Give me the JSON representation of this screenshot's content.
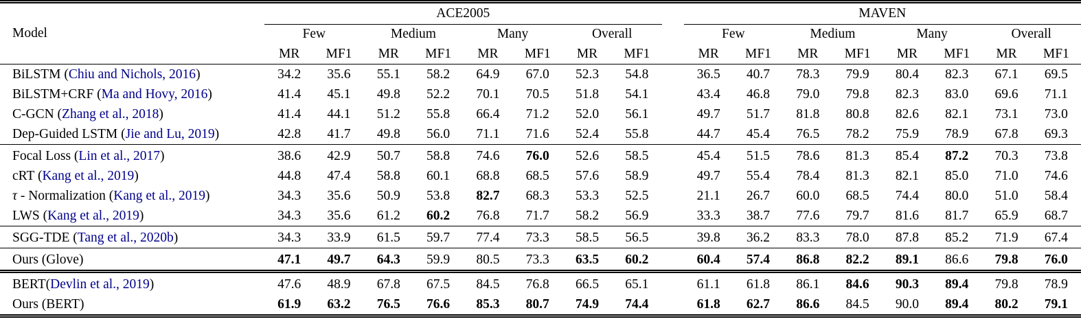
{
  "table": {
    "model_header": "Model",
    "datasets": [
      "ACE2005",
      "MAVEN"
    ],
    "subgroups": [
      "Few",
      "Medium",
      "Many",
      "Overall"
    ],
    "metrics": [
      "MR",
      "MF1"
    ],
    "citation_color": "#00008B",
    "groups": [
      {
        "double_rule": false,
        "rows": [
          {
            "name": "BiLSTM ",
            "cite": "Chiu and Nichols, 2016",
            "ace": [
              "34.2",
              "35.6",
              "55.1",
              "58.2",
              "64.9",
              "67.0",
              "52.3",
              "54.8"
            ],
            "ace_bold": [],
            "maven": [
              "36.5",
              "40.7",
              "78.3",
              "79.9",
              "80.4",
              "82.3",
              "67.1",
              "69.5"
            ],
            "maven_bold": []
          },
          {
            "name": "BiLSTM+CRF ",
            "cite": "Ma and Hovy, 2016",
            "ace": [
              "41.4",
              "45.1",
              "49.8",
              "52.2",
              "70.1",
              "70.5",
              "51.8",
              "54.1"
            ],
            "ace_bold": [],
            "maven": [
              "43.4",
              "46.8",
              "79.0",
              "79.8",
              "82.3",
              "83.0",
              "69.6",
              "71.1"
            ],
            "maven_bold": []
          },
          {
            "name": "C-GCN ",
            "cite": "Zhang et al., 2018",
            "ace": [
              "41.4",
              "44.1",
              "51.2",
              "55.8",
              "66.4",
              "71.2",
              "52.0",
              "56.1"
            ],
            "ace_bold": [],
            "maven": [
              "49.7",
              "51.7",
              "81.8",
              "80.8",
              "82.6",
              "82.1",
              "73.1",
              "73.0"
            ],
            "maven_bold": []
          },
          {
            "name": "Dep-Guided LSTM ",
            "cite": "Jie and Lu, 2019",
            "ace": [
              "42.8",
              "41.7",
              "49.8",
              "56.0",
              "71.1",
              "71.6",
              "52.4",
              "55.8"
            ],
            "ace_bold": [],
            "maven": [
              "44.7",
              "45.4",
              "76.5",
              "78.2",
              "75.9",
              "78.9",
              "67.8",
              "69.3"
            ],
            "maven_bold": []
          }
        ]
      },
      {
        "double_rule": false,
        "rows": [
          {
            "name": "Focal Loss ",
            "cite": "Lin et al., 2017",
            "ace": [
              "38.6",
              "42.9",
              "50.7",
              "58.8",
              "74.6",
              "76.0",
              "52.6",
              "58.5"
            ],
            "ace_bold": [
              5
            ],
            "maven": [
              "45.4",
              "51.5",
              "78.6",
              "81.3",
              "85.4",
              "87.2",
              "70.3",
              "73.8"
            ],
            "maven_bold": [
              5
            ]
          },
          {
            "name": "cRT ",
            "cite": "Kang et al., 2019",
            "ace": [
              "44.8",
              "47.4",
              "58.8",
              "60.1",
              "68.8",
              "68.5",
              "57.6",
              "58.9"
            ],
            "ace_bold": [],
            "maven": [
              "49.7",
              "55.4",
              "78.4",
              "81.3",
              "82.1",
              "85.0",
              "71.0",
              "74.6"
            ],
            "maven_bold": []
          },
          {
            "italic": "τ",
            "name": " - Normalization ",
            "cite": "Kang et al., 2019",
            "ace": [
              "34.3",
              "35.6",
              "50.9",
              "53.8",
              "82.7",
              "68.3",
              "53.3",
              "52.5"
            ],
            "ace_bold": [
              4
            ],
            "maven": [
              "21.1",
              "26.7",
              "60.0",
              "68.5",
              "74.4",
              "80.0",
              "51.0",
              "58.4"
            ],
            "maven_bold": []
          },
          {
            "name": "LWS ",
            "cite": "Kang et al., 2019",
            "ace": [
              "34.3",
              "35.6",
              "61.2",
              "60.2",
              "76.8",
              "71.7",
              "58.2",
              "56.9"
            ],
            "ace_bold": [
              3
            ],
            "maven": [
              "33.3",
              "38.7",
              "77.6",
              "79.7",
              "81.6",
              "81.7",
              "65.9",
              "68.7"
            ],
            "maven_bold": []
          }
        ]
      },
      {
        "double_rule": false,
        "rows": [
          {
            "name": "SGG-TDE ",
            "cite": "Tang et al., 2020b",
            "ace": [
              "34.3",
              "33.9",
              "61.5",
              "59.7",
              "77.4",
              "73.3",
              "58.5",
              "56.5"
            ],
            "ace_bold": [],
            "maven": [
              "39.8",
              "36.2",
              "83.3",
              "78.0",
              "87.8",
              "85.2",
              "71.9",
              "67.4"
            ],
            "maven_bold": []
          }
        ]
      },
      {
        "double_rule": false,
        "rows": [
          {
            "name": "Ours (Glove)",
            "cite": null,
            "ace": [
              "47.1",
              "49.7",
              "64.3",
              "59.9",
              "80.5",
              "73.3",
              "63.5",
              "60.2"
            ],
            "ace_bold": [
              0,
              1,
              2,
              6,
              7
            ],
            "maven": [
              "60.4",
              "57.4",
              "86.8",
              "82.2",
              "89.1",
              "86.6",
              "79.8",
              "76.0"
            ],
            "maven_bold": [
              0,
              1,
              2,
              3,
              4,
              6,
              7
            ]
          }
        ]
      },
      {
        "double_rule": true,
        "rows": [
          {
            "name": "BERT",
            "cite": "Devlin et al., 2019",
            "ace": [
              "47.6",
              "48.9",
              "67.8",
              "67.5",
              "84.5",
              "76.8",
              "66.5",
              "65.1"
            ],
            "ace_bold": [],
            "maven": [
              "61.1",
              "61.8",
              "86.1",
              "84.6",
              "90.3",
              "89.4",
              "79.8",
              "78.9"
            ],
            "maven_bold": [
              3,
              4,
              5
            ]
          },
          {
            "name": "Ours (BERT)",
            "cite": null,
            "ace": [
              "61.9",
              "63.2",
              "76.5",
              "76.6",
              "85.3",
              "80.7",
              "74.9",
              "74.4"
            ],
            "ace_bold": [
              0,
              1,
              2,
              3,
              4,
              5,
              6,
              7
            ],
            "maven": [
              "61.8",
              "62.7",
              "86.6",
              "84.5",
              "90.0",
              "89.4",
              "80.2",
              "79.1"
            ],
            "maven_bold": [
              0,
              1,
              2,
              5,
              6,
              7
            ]
          }
        ]
      }
    ]
  }
}
